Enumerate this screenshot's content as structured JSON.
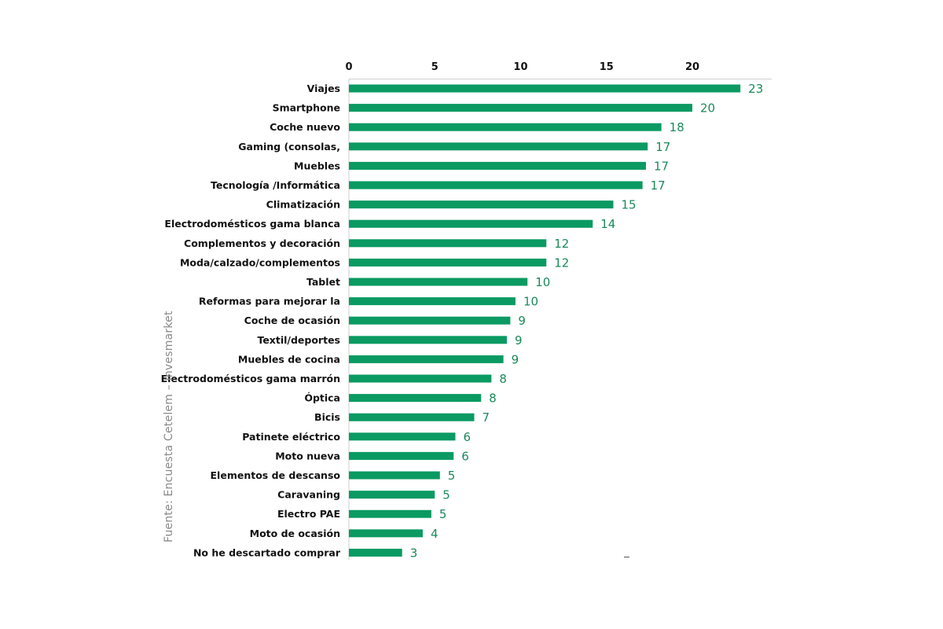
{
  "source": "Fuente: Encuesta Cetelem – Invesmarket",
  "colors": {
    "bar": "#0a9a62",
    "value_label": "#1a8a5a",
    "axis": "#cfcfcf",
    "text": "#111111"
  },
  "chart_data": {
    "type": "bar",
    "orientation": "horizontal",
    "title": "",
    "xlabel": "",
    "ylabel": "",
    "xlim": [
      0,
      25
    ],
    "xticks": [
      0,
      5,
      10,
      15,
      20
    ],
    "x_axis_position": "top",
    "grid": false,
    "categories": [
      "Viajes",
      "Smartphone",
      "Coche nuevo",
      "Gaming (consolas,",
      "Muebles",
      "Tecnología /Informática",
      "Climatización",
      "Electrodomésticos gama blanca",
      "Complementos y decoración",
      "Moda/calzado/complementos",
      "Tablet",
      "Reformas para mejorar la",
      "Coche de ocasión",
      "Textil/deportes",
      "Muebles de cocina",
      "Electrodomésticos gama marrón",
      "Óptica",
      "Bicis",
      "Patinete eléctrico",
      "Moto nueva",
      "Elementos de descanso",
      "Caravaning",
      "Electro PAE",
      "Moto de ocasión",
      "No he descartado comprar"
    ],
    "values": [
      22.8,
      20.0,
      18.2,
      17.4,
      17.3,
      17.1,
      15.4,
      14.2,
      11.5,
      11.5,
      10.4,
      9.7,
      9.4,
      9.2,
      9.0,
      8.3,
      7.7,
      7.3,
      6.2,
      6.1,
      5.3,
      5.0,
      4.8,
      4.3,
      3.1
    ],
    "data_labels": [
      "23",
      "20",
      "18",
      "17",
      "17",
      "17",
      "15",
      "14",
      "12",
      "12",
      "10",
      "10",
      "9",
      "9",
      "9",
      "8",
      "8",
      "7",
      "6",
      "6",
      "5",
      "5",
      "5",
      "4",
      "3"
    ]
  }
}
